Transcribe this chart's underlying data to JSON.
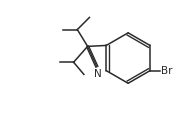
{
  "bg_color": "#ffffff",
  "line_color": "#2a2a2a",
  "line_width": 1.1,
  "font_size_br": 7.5,
  "font_size_n": 7.5,
  "br_label": "Br",
  "n_label": "N"
}
